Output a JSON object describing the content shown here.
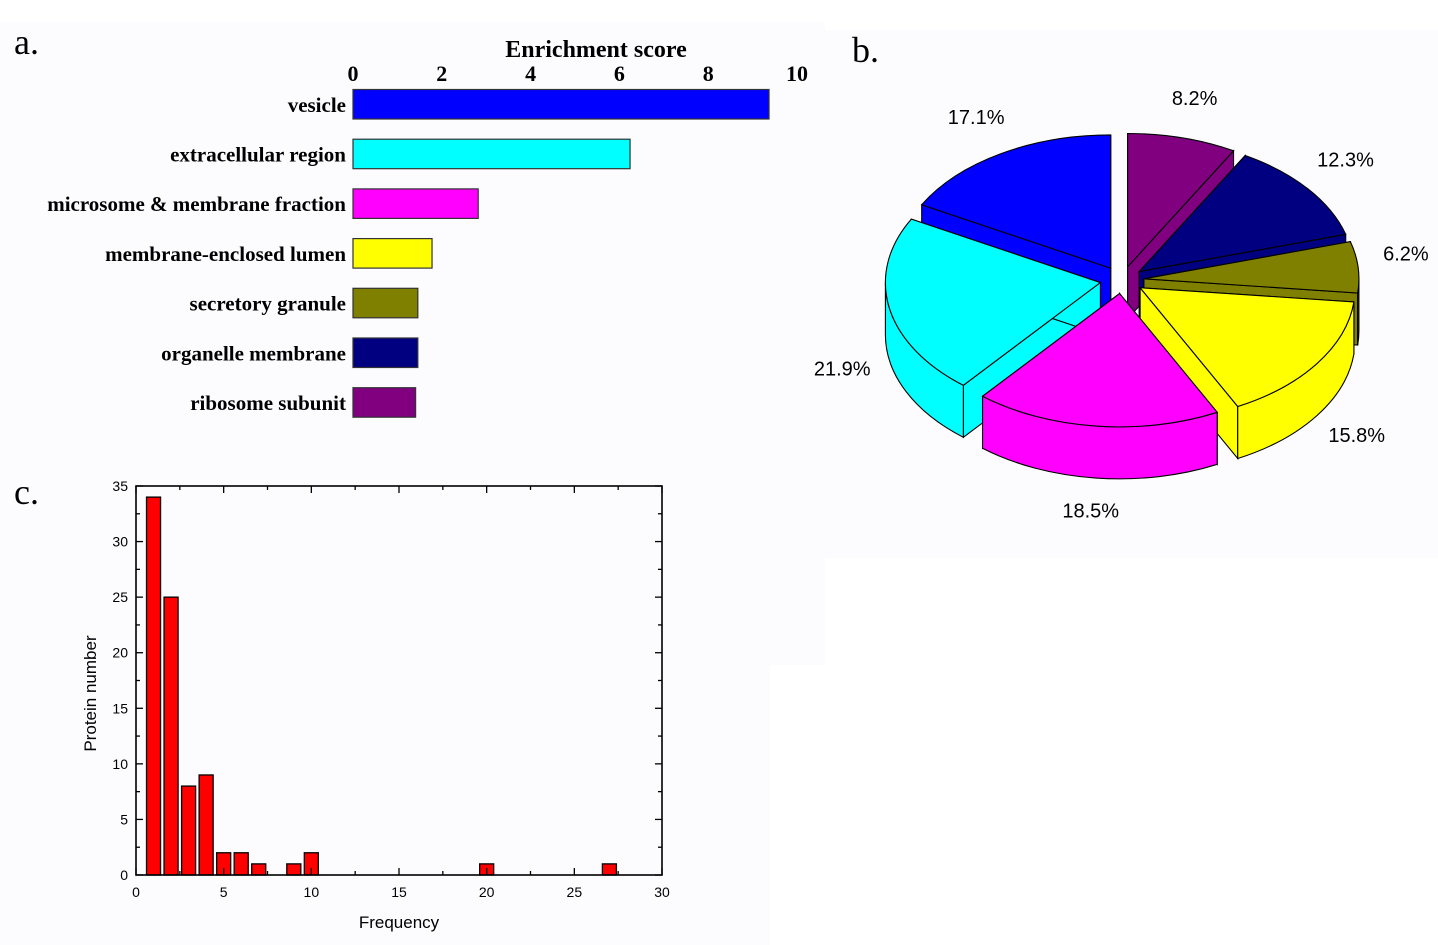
{
  "panels": {
    "a": "a.",
    "b": "b.",
    "c": "c."
  },
  "chart_data": [
    {
      "id": "a",
      "type": "bar",
      "orientation": "horizontal",
      "title": "",
      "xlabel": "Enrichment score",
      "ylabel": "",
      "xlim": [
        0,
        10
      ],
      "xticks": [
        "0",
        "2",
        "4",
        "6",
        "8",
        "10"
      ],
      "xaxis_position": "top",
      "grid": false,
      "categories": [
        "vesicle",
        "extracellular region",
        "microsome & membrane fraction",
        "membrane-enclosed lumen",
        "secretory granule",
        "organelle membrane",
        "ribosome subunit"
      ],
      "values": [
        9.37,
        6.24,
        2.82,
        1.78,
        1.46,
        1.46,
        1.41
      ],
      "colors": [
        "#0000FF",
        "#00FFFF",
        "#FF00FF",
        "#FFFF00",
        "#808000",
        "#000080",
        "#800080"
      ]
    },
    {
      "id": "b",
      "type": "pie",
      "style": "3d-exploded",
      "title": "",
      "categories": [
        "ribosome subunit",
        "organelle membrane",
        "secretory granule",
        "membrane-enclosed lumen",
        "microsome & membrane fraction",
        "extracellular region",
        "vesicle"
      ],
      "values": [
        8.2,
        12.3,
        6.2,
        15.8,
        18.5,
        21.9,
        17.1
      ],
      "labels": [
        "8.2%",
        "12.3%",
        "6.2%",
        "15.8%",
        "18.5%",
        "21.9%",
        "17.1%"
      ],
      "colors": [
        "#800080",
        "#000080",
        "#808000",
        "#FFFF00",
        "#FF00FF",
        "#00FFFF",
        "#0000FF"
      ]
    },
    {
      "id": "c",
      "type": "bar",
      "title": "",
      "xlabel": "Frequency",
      "ylabel": "Protein number",
      "xlim": [
        0,
        30
      ],
      "ylim": [
        0,
        35
      ],
      "xticks": [
        "0",
        "5",
        "10",
        "15",
        "20",
        "25",
        "30"
      ],
      "yticks": [
        "0",
        "5",
        "10",
        "15",
        "20",
        "25",
        "30",
        "35"
      ],
      "grid": false,
      "x": [
        1,
        2,
        3,
        4,
        5,
        6,
        7,
        9,
        10,
        20,
        27
      ],
      "values": [
        34,
        25,
        8,
        9,
        2,
        2,
        1,
        1,
        2,
        1,
        1
      ],
      "color": "#FF0000"
    }
  ]
}
